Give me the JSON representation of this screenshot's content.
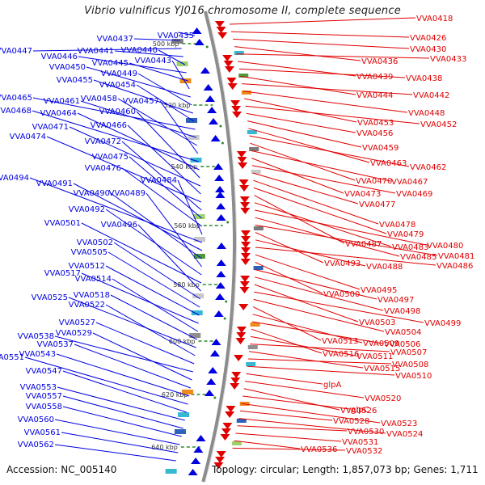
{
  "title": "Vibrio vulnificus YJ016 chromosome II, complete sequence",
  "footer": {
    "accession": "Accession: NC_005140",
    "summary": "Topology: circular; Length: 1,857,073 bp; Genes: 1,711"
  },
  "colors": {
    "left_strand": "#0000e0",
    "right_strand": "#e00000",
    "backbone": "#8c8c8c",
    "tick": "#2a8a2a"
  },
  "ticks": [
    "500 kbp",
    "520 kbp",
    "540 kbp",
    "560 kbp",
    "580 kbp",
    "600 kbp",
    "620 kbp",
    "640 kbp"
  ],
  "left_labels": [
    "VVA0435",
    "VVA0437",
    "VVA0447",
    "VVA0441",
    "VVA0440",
    "VVA0446",
    "VVA0445",
    "VVA0443",
    "VVA0450",
    "VVA0449",
    "VVA0455",
    "VVA0454",
    "VVA0465",
    "VVA0461",
    "VVA0458",
    "VVA0457",
    "VVA0468",
    "VVA0464",
    "VVA0460",
    "VVA0471",
    "VVA0466",
    "VVA0474",
    "VVA0472",
    "VVA0475",
    "VVA0476",
    "VVA0484",
    "VVA0494",
    "VVA0491",
    "VVA0490",
    "VVA0489",
    "VVA0492",
    "VVA0501",
    "VVA0496",
    "VVA0502",
    "VVA0505",
    "VVA0512",
    "VVA0517",
    "VVA0514",
    "VVA0518",
    "VVA0525",
    "VVA0522",
    "VVA0527",
    "VVA0538",
    "VVA0529",
    "VVA0537",
    "VVA0543",
    "VVA0551",
    "VVA0547",
    "VVA0553",
    "VVA0557",
    "VVA0558",
    "VVA0560",
    "VVA0561",
    "VVA0562"
  ],
  "right_labels": [
    "VVA0418",
    "VVA0426",
    "VVA0430",
    "VVA0436",
    "VVA0433",
    "VVA0439",
    "VVA0438",
    "VVA0444",
    "VVA0442",
    "VVA0448",
    "VVA0453",
    "VVA0452",
    "VVA0456",
    "VVA0459",
    "VVA0463",
    "VVA0462",
    "VVA0470",
    "VVA0467",
    "VVA0473",
    "VVA0469",
    "VVA0477",
    "VVA0478",
    "VVA0479",
    "VVA0487",
    "VVA0483",
    "VVA0480",
    "VVA0485",
    "VVA0481",
    "VVA0493",
    "VVA0488",
    "VVA0486",
    "VVA0495",
    "VVA0500",
    "VVA0497",
    "VVA0498",
    "VVA0503",
    "VVA0499",
    "VVA0504",
    "VVA0513",
    "VVA0509",
    "VVA0506",
    "VVA0516",
    "VVA0511",
    "VVA0507",
    "VVA0515",
    "VVA0508",
    "VVA0510",
    "glpA",
    "VVA0520",
    "VVA0526",
    "glpC",
    "VVA0523",
    "VVA0528",
    "VVA0524",
    "VVA0530",
    "VVA0531",
    "VVA0536",
    "VVA0532"
  ]
}
